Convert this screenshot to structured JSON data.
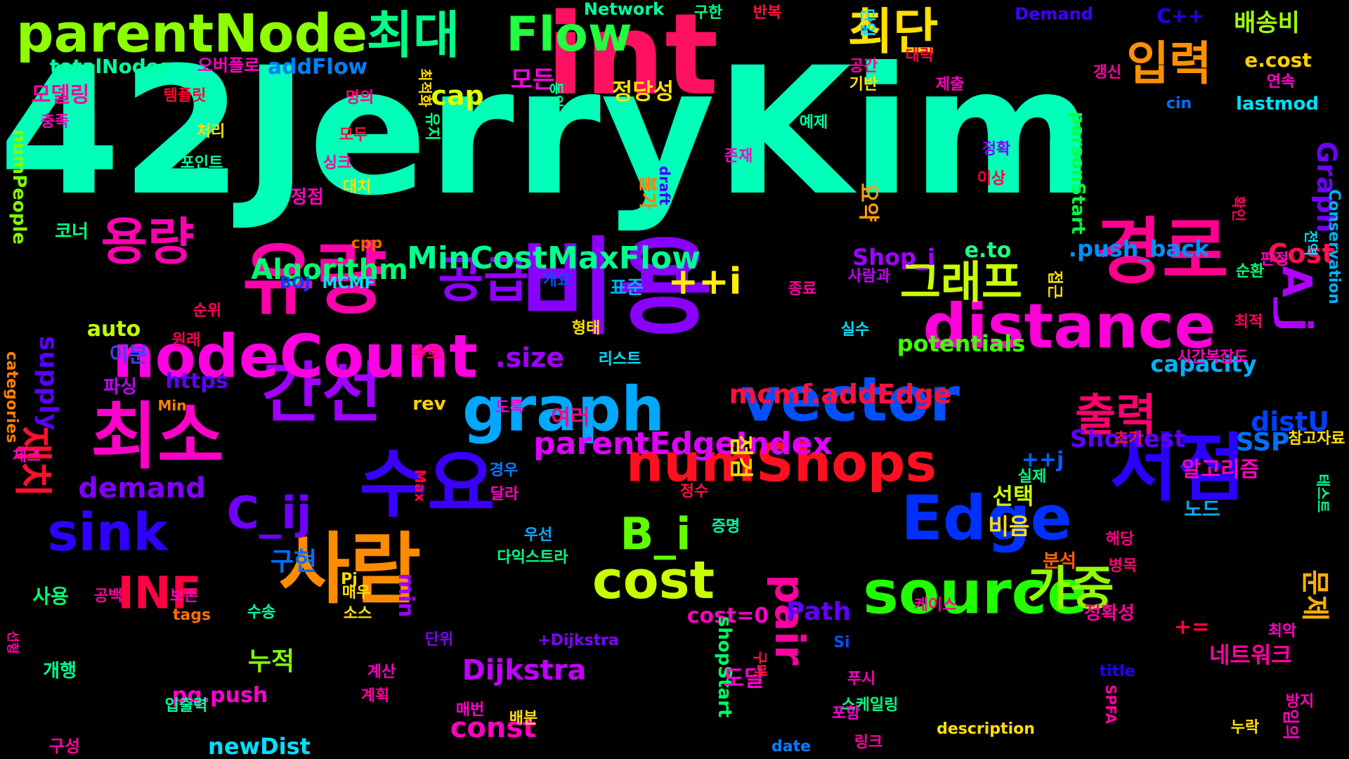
{
  "background": "#000000",
  "words": [
    {
      "text": "42JerryKim",
      "color": "#00ffb8"
    },
    {
      "text": "int",
      "color": "#ff1060"
    },
    {
      "text": "비용",
      "color": "#8a00ff"
    },
    {
      "text": "유량",
      "color": "#ff00aa"
    },
    {
      "text": "사람",
      "color": "#ff8c00"
    },
    {
      "text": "수요",
      "color": "#3a00ff"
    },
    {
      "text": "서점",
      "color": "#2a00ff"
    },
    {
      "text": "경로",
      "color": "#ff0090"
    },
    {
      "text": "최소",
      "color": "#ff00c8"
    },
    {
      "text": "간선",
      "color": "#a000ff"
    },
    {
      "text": "distance",
      "color": "#ff00d8"
    },
    {
      "text": "vector",
      "color": "#0050ff"
    },
    {
      "text": "graph",
      "color": "#00a8ff"
    },
    {
      "text": "Edge",
      "color": "#0030ff"
    },
    {
      "text": "source",
      "color": "#20ff00"
    },
    {
      "text": "nodeCount",
      "color": "#ff00e0"
    },
    {
      "text": "numShops",
      "color": "#ff1020"
    },
    {
      "text": "parentNode",
      "color": "#8cff00"
    },
    {
      "text": "cost",
      "color": "#c8ff00"
    },
    {
      "text": "sink",
      "color": "#3000ff"
    },
    {
      "text": "용량",
      "color": "#ff00b0"
    },
    {
      "text": "최대",
      "color": "#00ff88"
    },
    {
      "text": "Flow",
      "color": "#20ff40"
    },
    {
      "text": "최단",
      "color": "#ffe000"
    },
    {
      "text": "입력",
      "color": "#ff9000"
    },
    {
      "text": "공급",
      "color": "#9000ff"
    },
    {
      "text": "그래프",
      "color": "#c8ff00"
    },
    {
      "text": "출력",
      "color": "#ff0070"
    },
    {
      "text": "가중",
      "color": "#90ff00"
    },
    {
      "text": "B_i",
      "color": "#60ff00"
    },
    {
      "text": "C_ij",
      "color": "#7000ff"
    },
    {
      "text": "INF",
      "color": "#ff0040"
    },
    {
      "text": "pair",
      "color": "#ff00a0"
    },
    {
      "text": "A_j",
      "color": "#b000ff"
    },
    {
      "text": "재치",
      "color": "#ff1030"
    },
    {
      "text": "MinCostMaxFlow",
      "color": "#00ff90"
    },
    {
      "text": "++i",
      "color": "#ffee00"
    },
    {
      "text": "parentEdgeIndex",
      "color": "#e000ff"
    },
    {
      "text": "mcmf.addEdge",
      "color": "#ff1040"
    },
    {
      "text": "Algorithm",
      "color": "#00ff70"
    },
    {
      "text": "demand",
      "color": "#8000ff"
    },
    {
      "text": "supply",
      "color": "#5a00ff"
    },
    {
      "text": "Dijkstra",
      "color": "#c000ff"
    },
    {
      "text": "const",
      "color": "#ff00c0"
    },
    {
      "text": "Cost",
      "color": "#ff1050"
    },
    {
      "text": "Graph",
      "color": "#7000ff"
    },
    {
      "text": "distU",
      "color": "#0040ff"
    },
    {
      "text": "SSP",
      "color": "#0070ff"
    },
    {
      "text": "Shortest",
      "color": "#6000ff"
    },
    {
      "text": "potentials",
      "color": "#40ff00"
    },
    {
      "text": "capacity",
      "color": "#00b0ff"
    },
    {
      "text": ".push_back",
      "color": "#0090ff"
    },
    {
      "text": "Shop_i",
      "color": "#a000ff"
    },
    {
      "text": "e.to",
      "color": "#20ff80"
    },
    {
      "text": "Path",
      "color": "#6000ff"
    },
    {
      "text": "cost=0",
      "color": "#ff00c0"
    },
    {
      "text": "pq.push",
      "color": "#ff00d0"
    },
    {
      "text": "newDist",
      "color": "#00e0ff"
    },
    {
      "text": "shopStart",
      "color": "#00ff60"
    },
    {
      "text": "personStart",
      "color": "#00ff40"
    },
    {
      "text": "totalNodes",
      "color": "#00ffa0"
    },
    {
      "text": "addFlow",
      "color": "#0080ff"
    },
    {
      "text": "numPeople",
      "color": "#80ff00"
    },
    {
      "text": "cap",
      "color": "#e0ff00"
    },
    {
      "text": "모든",
      "color": "#ff00e0"
    },
    {
      "text": "배송비",
      "color": "#a0ff00"
    },
    {
      "text": "e.cost",
      "color": "#ffd000"
    },
    {
      "text": "C++",
      "color": "#2000ff"
    },
    {
      "text": "Network",
      "color": "#00ffa0"
    },
    {
      "text": "Demand",
      "color": "#4000ff"
    },
    {
      "text": "정당성",
      "color": "#ffe000"
    },
    {
      "text": "모델링",
      "color": "#ff00a0"
    },
    {
      "text": "오버플로",
      "color": "#ff00c8"
    },
    {
      "text": "rev",
      "color": "#ffd000"
    },
    {
      "text": "https",
      "color": "#6000ff"
    },
    {
      "text": "auto",
      "color": "#c0ff00"
    },
    {
      "text": "이분",
      "color": "#4040ff"
    },
    {
      "text": ".size",
      "color": "#a000ff"
    },
    {
      "text": "Conservation",
      "color": "#00b0ff"
    },
    {
      "text": "categories",
      "color": "#ff8000"
    },
    {
      "text": "title",
      "color": "#2000ff"
    },
    {
      "text": "SPFA",
      "color": "#ff00a0"
    },
    {
      "text": "date",
      "color": "#0080ff"
    },
    {
      "text": "tags",
      "color": "#ff7000"
    },
    {
      "text": "description",
      "color": "#ffe000"
    },
    {
      "text": "lastmod",
      "color": "#00e0ff"
    },
    {
      "text": "cin",
      "color": "#0070ff"
    },
    {
      "text": "cpp",
      "color": "#ff6000"
    },
    {
      "text": "MCMF",
      "color": "#00e0ff"
    },
    {
      "text": "BOJ",
      "color": "#0040ff"
    },
    {
      "text": "Min",
      "color": "#ff8000"
    },
    {
      "text": "draft",
      "color": "#4000ff"
    },
    {
      "text": "+Dijkstra",
      "color": "#8000ff"
    },
    {
      "text": "++j",
      "color": "#0060ff"
    },
    {
      "text": "+=",
      "color": "#ff0040"
    },
    {
      "text": "Max",
      "color": "#ff0040"
    },
    {
      "text": "Pj",
      "color": "#ffe000"
    },
    {
      "text": "min",
      "color": "#a000ff"
    },
    {
      "text": "Si",
      "color": "#0050ff"
    },
    {
      "text": "네트워크",
      "color": "#ff00a0"
    },
    {
      "text": "알고리즘",
      "color": "#ff00c0"
    },
    {
      "text": "문제",
      "color": "#ffb000"
    },
    {
      "text": "선택",
      "color": "#c8ff00"
    },
    {
      "text": "비음",
      "color": "#ffe000"
    },
    {
      "text": "구현",
      "color": "#0070ff"
    },
    {
      "text": "누적",
      "color": "#80ff00"
    },
    {
      "text": "도달",
      "color": "#ff00d0"
    },
    {
      "text": "여러",
      "color": "#ff0080"
    },
    {
      "text": "점검",
      "color": "#ffe000"
    },
    {
      "text": "불가",
      "color": "#ff8000"
    },
    {
      "text": "요약",
      "color": "#ffa000"
    },
    {
      "text": "표준",
      "color": "#00b0ff"
    },
    {
      "text": "정점",
      "color": "#ff00c0"
    },
    {
      "text": "코너",
      "color": "#00ff80"
    },
    {
      "text": "파싱",
      "color": "#c000ff"
    },
    {
      "text": "사용",
      "color": "#00ff70"
    },
    {
      "text": "개행",
      "color": "#00ff90"
    },
    {
      "text": "구성",
      "color": "#ff00a0"
    },
    {
      "text": "체크",
      "color": "#ff00d0"
    },
    {
      "text": "선형",
      "color": "#ff00a0"
    },
    {
      "text": "순위",
      "color": "#ff0060"
    },
    {
      "text": "원래",
      "color": "#ff0050"
    },
    {
      "text": "처리",
      "color": "#ffe000"
    },
    {
      "text": "포인트",
      "color": "#00ffa0"
    },
    {
      "text": "대치",
      "color": "#ffe000"
    },
    {
      "text": "싱크",
      "color": "#ff00a0"
    },
    {
      "text": "모두",
      "color": "#ff1040"
    },
    {
      "text": "템플릿",
      "color": "#ff0030"
    },
    {
      "text": "충족",
      "color": "#ff00c0"
    },
    {
      "text": "명의",
      "color": "#ff0080"
    },
    {
      "text": "구한",
      "color": "#00ff80"
    },
    {
      "text": "반복",
      "color": "#ff1040"
    },
    {
      "text": "단일",
      "color": "#00e0ff"
    },
    {
      "text": "공간",
      "color": "#ff00a0"
    },
    {
      "text": "대략",
      "color": "#ff0040"
    },
    {
      "text": "기반",
      "color": "#ffe000"
    },
    {
      "text": "제출",
      "color": "#ff00c0"
    },
    {
      "text": "갱신",
      "color": "#ff00a0"
    },
    {
      "text": "연속",
      "color": "#ff00d0"
    },
    {
      "text": "동일",
      "color": "#00ffa0"
    },
    {
      "text": "유지",
      "color": "#00ff80"
    },
    {
      "text": "예제",
      "color": "#00ffa0"
    },
    {
      "text": "정확",
      "color": "#8000ff"
    },
    {
      "text": "존재",
      "color": "#ff00c8"
    },
    {
      "text": "이상",
      "color": "#ff0040"
    },
    {
      "text": "확인",
      "color": "#ff0060"
    },
    {
      "text": "전역",
      "color": "#00e0ff"
    },
    {
      "text": "판정",
      "color": "#ff00c0"
    },
    {
      "text": "참고자료",
      "color": "#ffe000"
    },
    {
      "text": "테스트",
      "color": "#00ff90"
    },
    {
      "text": "최악",
      "color": "#ff00c8"
    },
    {
      "text": "순환",
      "color": "#00ff70"
    },
    {
      "text": "최적",
      "color": "#ff0060"
    },
    {
      "text": "시간복잡도",
      "color": "#ff00c0"
    },
    {
      "text": "노드",
      "color": "#00b0ff"
    },
    {
      "text": "실제",
      "color": "#00ff80"
    },
    {
      "text": "해당",
      "color": "#ff0080"
    },
    {
      "text": "병목",
      "color": "#ff0070"
    },
    {
      "text": "분석",
      "color": "#ff6000"
    },
    {
      "text": "정확성",
      "color": "#ff00a0"
    },
    {
      "text": "케이스",
      "color": "#ff00a0"
    },
    {
      "text": "푸시",
      "color": "#ff00c0"
    },
    {
      "text": "스케일링",
      "color": "#00ff80"
    },
    {
      "text": "포함",
      "color": "#ff00d0"
    },
    {
      "text": "링크",
      "color": "#ff00a0"
    },
    {
      "text": "누락",
      "color": "#ffe000"
    },
    {
      "text": "방지",
      "color": "#ff00c0"
    },
    {
      "text": "임의",
      "color": "#ff00c0"
    },
    {
      "text": "초기",
      "color": "#ff1040"
    },
    {
      "text": "구매",
      "color": "#ff1040"
    },
    {
      "text": "접근",
      "color": "#ffe000"
    },
    {
      "text": "종료",
      "color": "#ff00a0"
    },
    {
      "text": "실수",
      "color": "#00e0ff"
    },
    {
      "text": "사람과",
      "color": "#c000ff"
    },
    {
      "text": "리스트",
      "color": "#00e0ff"
    },
    {
      "text": "형태",
      "color": "#ffe000"
    },
    {
      "text": "수로",
      "color": "#ff0040"
    },
    {
      "text": "도록",
      "color": "#ff00d0"
    },
    {
      "text": "정수",
      "color": "#ff1040"
    },
    {
      "text": "증명",
      "color": "#00ffa0"
    },
    {
      "text": "경우",
      "color": "#0080ff"
    },
    {
      "text": "달라",
      "color": "#ff00c0"
    },
    {
      "text": "우선",
      "color": "#00b0ff"
    },
    {
      "text": "다익스트라",
      "color": "#00ff80"
    },
    {
      "text": "매우",
      "color": "#ffe000"
    },
    {
      "text": "소스",
      "color": "#ffe000"
    },
    {
      "text": "계산",
      "color": "#ff00c0"
    },
    {
      "text": "계획",
      "color": "#ff00a0"
    },
    {
      "text": "단위",
      "color": "#8000ff"
    },
    {
      "text": "매번",
      "color": "#ff00d0"
    },
    {
      "text": "배분",
      "color": "#ffe000"
    },
    {
      "text": "수송",
      "color": "#00ffa0"
    },
    {
      "text": "보존",
      "color": "#ff00c0"
    },
    {
      "text": "공백",
      "color": "#ff00a0"
    },
    {
      "text": "입출력",
      "color": "#00ffa0"
    },
    {
      "text": "개요",
      "color": "#0050ff"
    },
    {
      "text": "최적화",
      "color": "#ffe000"
    },
    {
      "text": "배송",
      "color": "#ff00c0"
    },
    {
      "text": "정보",
      "color": "#ff00a0"
    }
  ]
}
